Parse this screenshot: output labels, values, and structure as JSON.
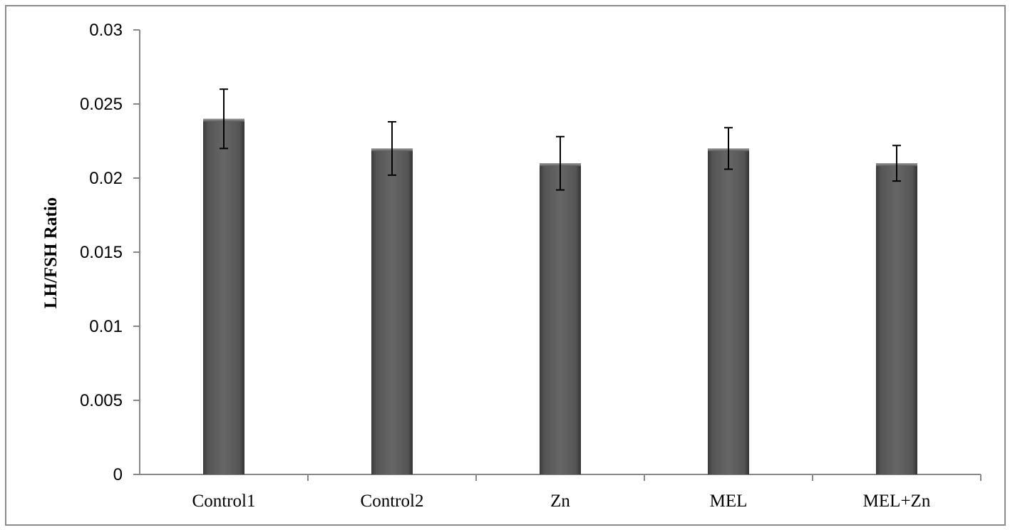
{
  "chart_data": {
    "type": "bar",
    "title": "",
    "xlabel": "",
    "ylabel": "LH/FSH Ratio",
    "categories": [
      "Control1",
      "Control2",
      "Zn",
      "MEL",
      "MEL+Zn"
    ],
    "values": [
      0.024,
      0.022,
      0.021,
      0.022,
      0.021
    ],
    "error": [
      0.002,
      0.0018,
      0.0018,
      0.0014,
      0.0012
    ],
    "ylim": [
      0,
      0.03
    ],
    "yticks": [
      0,
      0.005,
      0.01,
      0.015,
      0.02,
      0.025,
      0.03
    ],
    "ytick_labels": [
      "0",
      "0.005",
      "0.01",
      "0.015",
      "0.02",
      "0.025",
      "0.03"
    ],
    "grid": false,
    "legend": "none",
    "bar_color": "#5a5a5a"
  }
}
